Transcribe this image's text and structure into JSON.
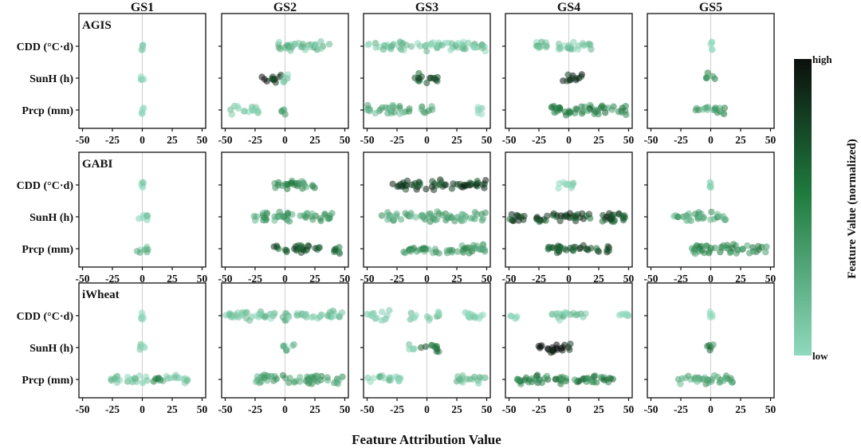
{
  "chart_data": {
    "type": "scatter",
    "subtype": "beeswarm (SHAP-style feature attribution), faceted 3 rows x 5 columns",
    "columns": [
      "GS1",
      "GS2",
      "GS3",
      "GS4",
      "GS5"
    ],
    "rows": [
      "AGIS",
      "GABI",
      "iWheat"
    ],
    "features": [
      "CDD (°C·d)",
      "SunH (h)",
      "Prcp (mm)"
    ],
    "xlabel": "Feature Attribution Value",
    "xlim": [
      -53,
      53
    ],
    "xticks": [
      -50,
      -25,
      0,
      25,
      50
    ],
    "xtick_labels": [
      "-50",
      "-25",
      "0",
      "25",
      "50"
    ],
    "zero_line": true,
    "grid": false,
    "colorbar": {
      "title": "Feature Value (normalized)",
      "high_label": "high",
      "low_label": "low",
      "low_color": "#8fd9bd",
      "mid_color": "#1f7a3e",
      "high_color": "#0b0f0c",
      "placement": "right"
    },
    "note": "Each panel shows the distribution of point clouds per feature: segments [x_min, x_max, dominant normalized feature value 0=low..1=high]",
    "panels": [
      {
        "row": "AGIS",
        "col": "GS1",
        "features": [
          {
            "name": "CDD (°C·d)",
            "segments": [
              [
                -1,
                1,
                0.0
              ]
            ]
          },
          {
            "name": "SunH (h)",
            "segments": [
              [
                -1.5,
                1.5,
                0.0
              ]
            ]
          },
          {
            "name": "Prcp (mm)",
            "segments": [
              [
                -3,
                3,
                0.0
              ]
            ]
          }
        ]
      },
      {
        "row": "AGIS",
        "col": "GS2",
        "features": [
          {
            "name": "CDD (°C·d)",
            "segments": [
              [
                -10,
                42,
                0.15
              ]
            ]
          },
          {
            "name": "SunH (h)",
            "segments": [
              [
                -20,
                -3,
                0.85
              ],
              [
                -3,
                4,
                0.1
              ]
            ]
          },
          {
            "name": "Prcp (mm)",
            "segments": [
              [
                -47,
                -22,
                0.05
              ],
              [
                -3,
                2,
                0.3
              ]
            ]
          }
        ]
      },
      {
        "row": "AGIS",
        "col": "GS3",
        "features": [
          {
            "name": "CDD (°C·d)",
            "segments": [
              [
                -50,
                50,
                0.1
              ]
            ]
          },
          {
            "name": "SunH (h)",
            "segments": [
              [
                -12,
                10,
                0.75
              ]
            ]
          },
          {
            "name": "Prcp (mm)",
            "segments": [
              [
                -50,
                -10,
                0.3
              ],
              [
                -6,
                5,
                0.4
              ],
              [
                42,
                46,
                0.05
              ]
            ]
          }
        ]
      },
      {
        "row": "AGIS",
        "col": "GS4",
        "features": [
          {
            "name": "CDD (°C·d)",
            "segments": [
              [
                -28,
                20,
                0.1
              ]
            ]
          },
          {
            "name": "SunH (h)",
            "segments": [
              [
                -5,
                12,
                0.85
              ]
            ]
          },
          {
            "name": "Prcp (mm)",
            "segments": [
              [
                -20,
                50,
                0.5
              ]
            ]
          }
        ]
      },
      {
        "row": "AGIS",
        "col": "GS5",
        "features": [
          {
            "name": "CDD (°C·d)",
            "segments": [
              [
                -1.5,
                1.5,
                0.0
              ]
            ]
          },
          {
            "name": "SunH (h)",
            "segments": [
              [
                -4,
                5,
                0.45
              ]
            ]
          },
          {
            "name": "Prcp (mm)",
            "segments": [
              [
                -15,
                12,
                0.35
              ]
            ]
          }
        ]
      },
      {
        "row": "GABI",
        "col": "GS1",
        "features": [
          {
            "name": "CDD (°C·d)",
            "segments": [
              [
                -1,
                1,
                0.0
              ]
            ]
          },
          {
            "name": "SunH (h)",
            "segments": [
              [
                -4,
                6,
                0.1
              ]
            ]
          },
          {
            "name": "Prcp (mm)",
            "segments": [
              [
                -6,
                6,
                0.2
              ]
            ]
          }
        ]
      },
      {
        "row": "GABI",
        "col": "GS2",
        "features": [
          {
            "name": "CDD (°C·d)",
            "segments": [
              [
                -12,
                25,
                0.45
              ]
            ]
          },
          {
            "name": "SunH (h)",
            "segments": [
              [
                -28,
                42,
                0.35
              ]
            ]
          },
          {
            "name": "Prcp (mm)",
            "segments": [
              [
                -10,
                30,
                0.7
              ],
              [
                40,
                50,
                0.6
              ]
            ]
          }
        ]
      },
      {
        "row": "GABI",
        "col": "GS3",
        "features": [
          {
            "name": "CDD (°C·d)",
            "segments": [
              [
                -30,
                50,
                0.8
              ]
            ]
          },
          {
            "name": "SunH (h)",
            "segments": [
              [
                -38,
                50,
                0.3
              ]
            ]
          },
          {
            "name": "Prcp (mm)",
            "segments": [
              [
                -20,
                50,
                0.4
              ]
            ]
          }
        ]
      },
      {
        "row": "GABI",
        "col": "GS4",
        "features": [
          {
            "name": "CDD (°C·d)",
            "segments": [
              [
                -10,
                5,
                0.05
              ]
            ]
          },
          {
            "name": "SunH (h)",
            "segments": [
              [
                -50,
                50,
                0.75
              ]
            ]
          },
          {
            "name": "Prcp (mm)",
            "segments": [
              [
                -18,
                35,
                0.75
              ]
            ]
          }
        ]
      },
      {
        "row": "GABI",
        "col": "GS5",
        "features": [
          {
            "name": "CDD (°C·d)",
            "segments": [
              [
                -1.5,
                1.5,
                0.0
              ]
            ]
          },
          {
            "name": "SunH (h)",
            "segments": [
              [
                -32,
                15,
                0.3
              ]
            ]
          },
          {
            "name": "Prcp (mm)",
            "segments": [
              [
                -18,
                50,
                0.45
              ]
            ]
          }
        ]
      },
      {
        "row": "iWheat",
        "col": "GS1",
        "features": [
          {
            "name": "CDD (°C·d)",
            "segments": [
              [
                -1,
                1,
                0.0
              ]
            ]
          },
          {
            "name": "SunH (h)",
            "segments": [
              [
                -2,
                3,
                0.0
              ]
            ]
          },
          {
            "name": "Prcp (mm)",
            "segments": [
              [
                -30,
                -18,
                0.15
              ],
              [
                -14,
                5,
                0.1
              ],
              [
                8,
                18,
                0.4
              ],
              [
                20,
                38,
                0.05
              ]
            ]
          }
        ]
      },
      {
        "row": "iWheat",
        "col": "GS2",
        "features": [
          {
            "name": "CDD (°C·d)",
            "segments": [
              [
                -52,
                48,
                0.1
              ]
            ]
          },
          {
            "name": "SunH (h)",
            "segments": [
              [
                -3,
                8,
                0.2
              ]
            ]
          },
          {
            "name": "Prcp (mm)",
            "segments": [
              [
                -25,
                50,
                0.35
              ]
            ]
          }
        ]
      },
      {
        "row": "iWheat",
        "col": "GS3",
        "features": [
          {
            "name": "CDD (°C·d)",
            "segments": [
              [
                -50,
                -30,
                0.05
              ],
              [
                -15,
                -8,
                0.05
              ],
              [
                0,
                12,
                0.1
              ],
              [
                30,
                50,
                0.05
              ]
            ]
          },
          {
            "name": "SunH (h)",
            "segments": [
              [
                -15,
                -10,
                0.1
              ],
              [
                -5,
                10,
                0.6
              ]
            ]
          },
          {
            "name": "Prcp (mm)",
            "segments": [
              [
                -50,
                -22,
                0.1
              ],
              [
                25,
                50,
                0.2
              ]
            ]
          }
        ]
      },
      {
        "row": "iWheat",
        "col": "GS4",
        "features": [
          {
            "name": "CDD (°C·d)",
            "segments": [
              [
                -50,
                -43,
                0.05
              ],
              [
                -15,
                15,
                0.1
              ],
              [
                40,
                50,
                0.05
              ]
            ]
          },
          {
            "name": "SunH (h)",
            "segments": [
              [
                -27,
                5,
                0.95
              ]
            ]
          },
          {
            "name": "Prcp (mm)",
            "segments": [
              [
                -45,
                40,
                0.5
              ]
            ]
          }
        ]
      },
      {
        "row": "iWheat",
        "col": "GS5",
        "features": [
          {
            "name": "CDD (°C·d)",
            "segments": [
              [
                -1.5,
                1.5,
                0.0
              ]
            ]
          },
          {
            "name": "SunH (h)",
            "segments": [
              [
                -3,
                3,
                0.5
              ]
            ]
          },
          {
            "name": "Prcp (mm)",
            "segments": [
              [
                -30,
                20,
                0.3
              ]
            ]
          }
        ]
      }
    ]
  }
}
